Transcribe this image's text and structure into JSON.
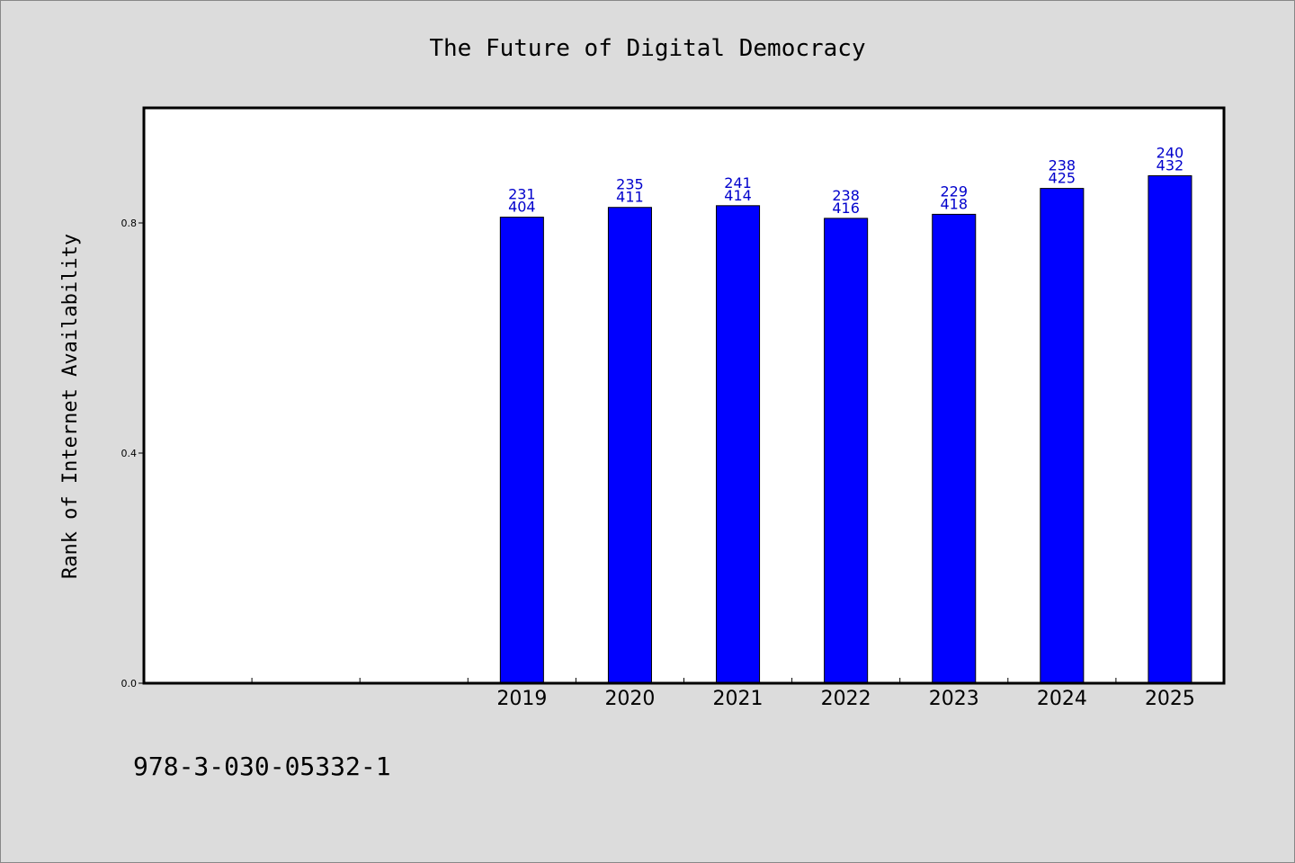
{
  "chart_data": {
    "type": "bar",
    "title": "The Future of Digital Democracy",
    "xlabel": "",
    "ylabel": "Rank of Internet Availability",
    "categories": [
      "",
      "",
      "",
      "2019",
      "2020",
      "2021",
      "2022",
      "2023",
      "2024",
      "2025"
    ],
    "values": [
      null,
      null,
      null,
      0.81,
      0.827,
      0.83,
      0.808,
      0.815,
      0.86,
      0.882
    ],
    "data_labels": [
      null,
      null,
      null,
      [
        "231",
        "404"
      ],
      [
        "235",
        "411"
      ],
      [
        "241",
        "414"
      ],
      [
        "238",
        "416"
      ],
      [
        "229",
        "418"
      ],
      [
        "238",
        "425"
      ],
      [
        "240",
        "432"
      ]
    ],
    "yticks": [
      "0.0",
      "0.4",
      "0.8"
    ],
    "ylim": [
      0,
      1.0
    ],
    "grid": false,
    "legend": "none",
    "bar_color": "#0000ff",
    "label_color": "#0000cc"
  },
  "footer": "978-3-030-05332-1"
}
